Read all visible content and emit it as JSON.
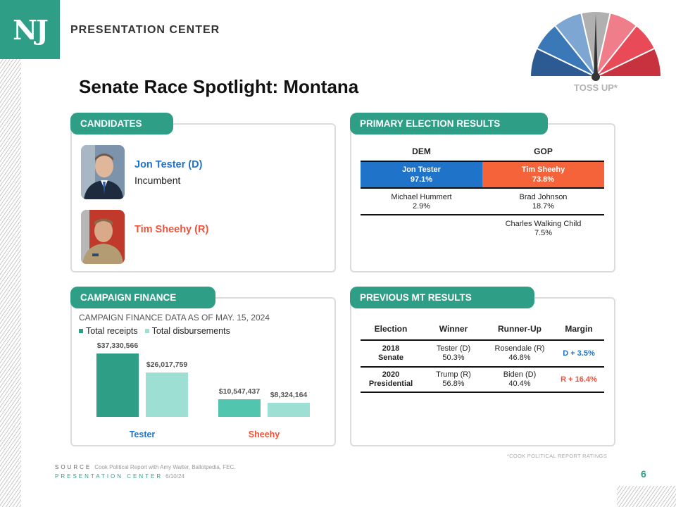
{
  "logo": "NJ",
  "brand": "PRESENTATION CENTER",
  "title": "Senate Race Spotlight: Montana",
  "rating": "TOSS UP*",
  "colors": {
    "teal": "#2f9e86",
    "dem": "#1f73c9",
    "gop": "#f4633a",
    "rep_text": "#f0533a"
  },
  "candidates": {
    "heading": "CANDIDATES",
    "list": [
      {
        "name": "Jon Tester (D)",
        "sub": "Incumbent"
      },
      {
        "name": "Tim Sheehy (R)",
        "sub": ""
      }
    ]
  },
  "primary": {
    "heading": "PRIMARY ELECTION RESULTS",
    "dem_label": "DEM",
    "gop_label": "GOP",
    "dem_winner": {
      "name": "Jon Tester",
      "pct": "97.1%"
    },
    "gop_winner": {
      "name": "Tim Sheehy",
      "pct": "73.8%"
    },
    "dem_others": [
      {
        "name": "Michael Hummert",
        "pct": "2.9%"
      }
    ],
    "gop_others": [
      {
        "name": "Brad Johnson",
        "pct": "18.7%"
      },
      {
        "name": "Charles Walking Child",
        "pct": "7.5%"
      }
    ]
  },
  "finance": {
    "heading": "CAMPAIGN FINANCE",
    "note": "CAMPAIGN FINANCE DATA AS OF MAY. 15, 2024",
    "legend": [
      "Total receipts",
      "Total disbursements"
    ]
  },
  "chart_data": {
    "type": "bar",
    "categories": [
      "Tester",
      "Sheehy"
    ],
    "series": [
      {
        "name": "Total receipts",
        "values": [
          37330566,
          10547437
        ],
        "labels": [
          "$37,330,566",
          "$10,547,437"
        ]
      },
      {
        "name": "Total disbursements",
        "values": [
          26017759,
          8324164
        ],
        "labels": [
          "$26,017,759",
          "$8,324,164"
        ]
      }
    ],
    "colors": {
      "Tester": [
        "#2f9e86",
        "#9ddfd3"
      ],
      "Sheehy": [
        "#52c5ae",
        "#9ddfd3"
      ]
    },
    "category_colors": [
      "#1f73c9",
      "#f0533a"
    ],
    "ylim": [
      0,
      40000000
    ]
  },
  "previous": {
    "heading": "PREVIOUS MT RESULTS",
    "columns": [
      "Election",
      "Winner",
      "Runner-Up",
      "Margin"
    ],
    "rows": [
      {
        "election1": "2018",
        "election2": "Senate",
        "winner1": "Tester (D)",
        "winner2": "50.3%",
        "runner1": "Rosendale (R)",
        "runner2": "46.8%",
        "margin": "D + 3.5%"
      },
      {
        "election1": "2020",
        "election2": "Presidential",
        "winner1": "Trump (R)",
        "winner2": "56.8%",
        "runner1": "Biden (D)",
        "runner2": "40.4%",
        "margin": "R + 16.4%"
      }
    ]
  },
  "footer": {
    "cook_note": "*COOK POLITICAL REPORT RATINGS",
    "source_key": "SOURCE",
    "source_text": "Cook Political Report with Amy Walter, Ballotpedia, FEC.",
    "pc_key": "PRESENTATION CENTER",
    "date": "6/10/24",
    "page": "6"
  }
}
